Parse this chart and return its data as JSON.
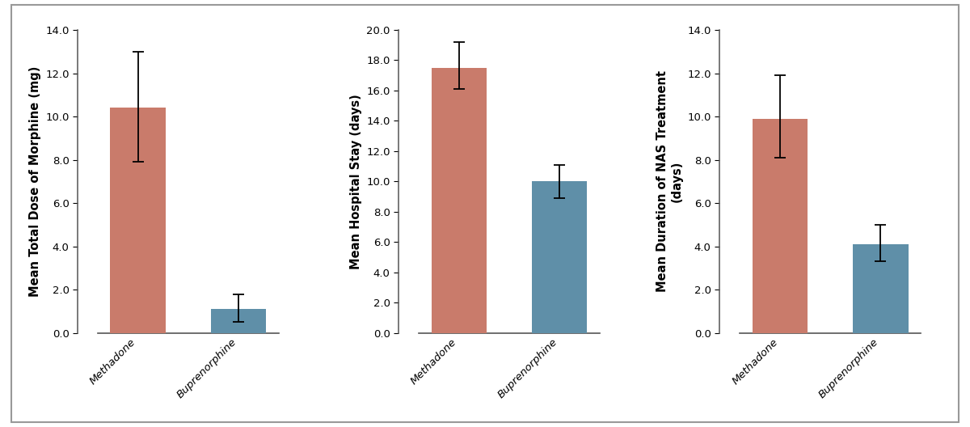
{
  "charts": [
    {
      "ylabel": "Mean Total Dose of Morphine (mg)",
      "ylim": [
        0,
        14.0
      ],
      "yticks": [
        0.0,
        2.0,
        4.0,
        6.0,
        8.0,
        10.0,
        12.0,
        14.0
      ],
      "categories": [
        "Methadone",
        "Buprenorphine"
      ],
      "values": [
        10.4,
        1.1
      ],
      "errors_up": [
        2.6,
        0.7
      ],
      "errors_down": [
        2.5,
        0.6
      ],
      "colors": [
        "#c97b6b",
        "#5f8fa8"
      ]
    },
    {
      "ylabel": "Mean Hospital Stay (days)",
      "ylim": [
        0,
        20.0
      ],
      "yticks": [
        0.0,
        2.0,
        4.0,
        6.0,
        8.0,
        10.0,
        12.0,
        14.0,
        16.0,
        18.0,
        20.0
      ],
      "categories": [
        "Methadone",
        "Buprenorphine"
      ],
      "values": [
        17.5,
        10.0
      ],
      "errors_up": [
        1.7,
        1.1
      ],
      "errors_down": [
        1.4,
        1.1
      ],
      "colors": [
        "#c97b6b",
        "#5f8fa8"
      ]
    },
    {
      "ylabel": "Mean Duration of NAS Treatment\n(days)",
      "ylim": [
        0,
        14.0
      ],
      "yticks": [
        0.0,
        2.0,
        4.0,
        6.0,
        8.0,
        10.0,
        12.0,
        14.0
      ],
      "categories": [
        "Methadone",
        "Buprenorphine"
      ],
      "values": [
        9.9,
        4.1
      ],
      "errors_up": [
        2.0,
        0.9
      ],
      "errors_down": [
        1.8,
        0.8
      ],
      "colors": [
        "#c97b6b",
        "#5f8fa8"
      ]
    }
  ],
  "bar_width": 0.55,
  "tick_label_fontsize": 9.5,
  "ylabel_fontsize": 10.5,
  "figure_facecolor": "#ffffff",
  "axes_facecolor": "#ffffff",
  "spine_color": "#555555",
  "border_color": "#999999"
}
